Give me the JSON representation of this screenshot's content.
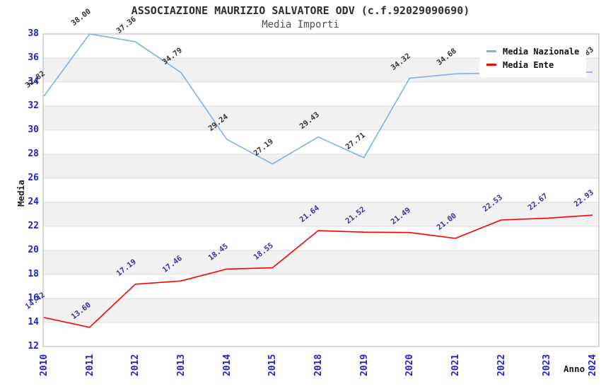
{
  "header": {
    "title": "ASSOCIAZIONE MAURIZIO SALVATORE ODV (c.f.92029090690)",
    "subtitle": "Media Importi"
  },
  "chart_data": {
    "type": "line",
    "title": "ASSOCIAZIONE MAURIZIO SALVATORE ODV (c.f.92029090690)",
    "subtitle": "Media Importi",
    "xlabel": "Anno",
    "ylabel": "Media",
    "categories": [
      "2010",
      "2011",
      "2012",
      "2013",
      "2014",
      "2015",
      "2018",
      "2019",
      "2020",
      "2021",
      "2022",
      "2023",
      "2024"
    ],
    "ylim": [
      12,
      38
    ],
    "yticks": [
      38,
      36,
      34,
      32,
      30,
      28,
      26,
      24,
      22,
      20,
      18,
      16,
      14,
      12
    ],
    "grid": "horizontal gridlines with alternating gray bands",
    "legend_position": "top-right",
    "series": [
      {
        "name": "Media Nazionale",
        "color": "#7fb1e3",
        "label_color": "#333333",
        "values": [
          32.82,
          38.0,
          37.36,
          34.79,
          29.24,
          27.19,
          29.43,
          27.71,
          34.32,
          34.68,
          34.75,
          34.8,
          34.83
        ],
        "labels": [
          "32.82",
          "38.00",
          "37.36",
          "34.79",
          "29.24",
          "27.19",
          "29.43",
          "27.71",
          "34.32",
          "34.68",
          null,
          null,
          "34.83"
        ]
      },
      {
        "name": "Media Ente",
        "color": "#ff0000",
        "label_color": "#333399",
        "values": [
          14.42,
          13.6,
          17.19,
          17.46,
          18.45,
          18.55,
          21.64,
          21.52,
          21.49,
          21.0,
          22.53,
          22.67,
          22.93
        ],
        "labels": [
          "14.42",
          "13.60",
          "17.19",
          "17.46",
          "18.45",
          "18.55",
          "21.64",
          "21.52",
          "21.49",
          "21.00",
          "22.53",
          "22.67",
          "22.93"
        ]
      }
    ]
  },
  "colors": {
    "tick_label": "#2020cc",
    "grid_line": "#dcdcdc",
    "band_fill": "#f1f1f1",
    "plot_border": "#b0b0b0",
    "national_line": "#7fb1e3",
    "entity_line": "#ff0000"
  }
}
